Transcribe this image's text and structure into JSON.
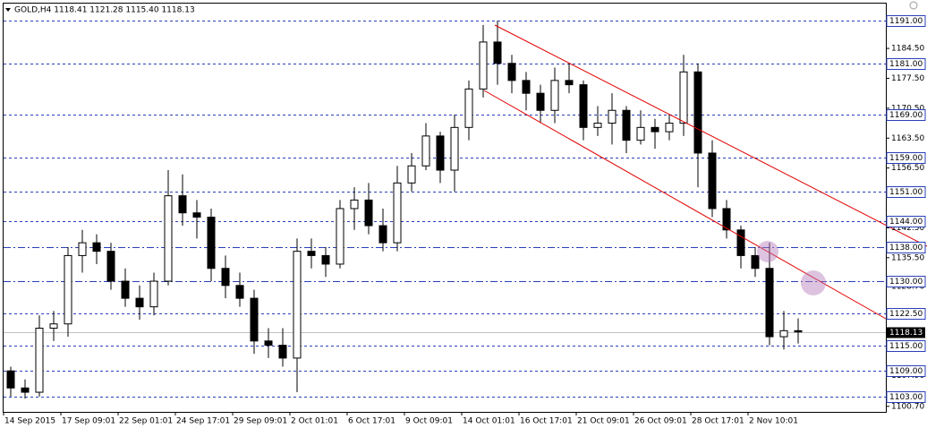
{
  "chart_data": {
    "type": "candlestick",
    "title": "GOLD,H4  1118.41 1121.28 1115.40 1118.13",
    "categories": [
      "14 Sep 2015",
      null,
      null,
      null,
      "17 Sep 09:01",
      null,
      null,
      null,
      "22 Sep 01:01",
      null,
      null,
      null,
      "24 Sep 17:01",
      null,
      null,
      null,
      "29 Sep 09:01",
      null,
      null,
      null,
      "2 Oct 01:01",
      null,
      null,
      null,
      "6 Oct 17:01",
      null,
      null,
      null,
      "9 Oct 09:01",
      null,
      null,
      null,
      "14 Oct 01:01",
      null,
      null,
      null,
      "16 Oct 17:01",
      null,
      null,
      null,
      "21 Oct 09:01",
      null,
      null,
      null,
      "26 Oct 09:01",
      null,
      null,
      null,
      "28 Oct 17:01",
      null,
      null,
      null,
      "2 Nov 10:01",
      null,
      null,
      null
    ],
    "open": [
      1109,
      1105,
      1104,
      1119,
      1120,
      1136,
      1139,
      1137,
      1130,
      1126,
      1124,
      1130,
      1150,
      1146,
      1145,
      1133,
      1129,
      1126,
      1116,
      1115,
      1112,
      1137,
      1136,
      1134,
      1147,
      1149,
      1143,
      1139,
      1153,
      1157,
      1164,
      1156,
      1166,
      1175,
      1186,
      1181,
      1177,
      1174,
      1170,
      1177,
      1176,
      1166,
      1167,
      1170,
      1163,
      1166,
      1165,
      1167,
      1179,
      1160,
      1147,
      1142,
      1136,
      1133,
      1117,
      1118.41
    ],
    "high": [
      1110,
      1107,
      1122,
      1123,
      1138,
      1142,
      1141,
      1139,
      1133,
      1129,
      1132,
      1156,
      1155,
      1149,
      1147,
      1136,
      1132,
      1128,
      1119,
      1119,
      1140,
      1140,
      1138,
      1149,
      1152,
      1153,
      1147,
      1157,
      1160,
      1167,
      1165,
      1169,
      1177,
      1190,
      1191,
      1183,
      1179,
      1176,
      1180,
      1181,
      1177,
      1171,
      1174,
      1171,
      1170,
      1168,
      1169,
      1183,
      1181,
      1163,
      1149,
      1143,
      1138,
      1139,
      1123,
      1121.28
    ],
    "low": [
      1103,
      1102.5,
      1103,
      1116,
      1117,
      1132,
      1134,
      1128,
      1124,
      1121,
      1122,
      1129,
      1143,
      1140,
      1130,
      1126,
      1124,
      1113,
      1112,
      1110,
      1104,
      1133,
      1131,
      1133,
      1142,
      1141,
      1137,
      1137,
      1151,
      1156,
      1153,
      1151,
      1163,
      1173,
      1176,
      1174,
      1170,
      1167,
      1167,
      1174,
      1163,
      1164,
      1162,
      1160,
      1162,
      1161,
      1163,
      1164,
      1152,
      1145,
      1140,
      1133,
      1131,
      1115,
      1114,
      1115.4
    ],
    "close": [
      1105,
      1104,
      1119,
      1120,
      1136,
      1139,
      1137,
      1130,
      1126,
      1124,
      1130,
      1150,
      1146,
      1145,
      1133,
      1129,
      1126,
      1116,
      1115,
      1112,
      1137,
      1136,
      1134,
      1147,
      1149,
      1143,
      1139,
      1153,
      1157,
      1164,
      1156,
      1166,
      1175,
      1186,
      1181,
      1177,
      1174,
      1170,
      1177,
      1176,
      1166,
      1167,
      1170,
      1163,
      1166,
      1165,
      1167,
      1179,
      1160,
      1147,
      1142,
      1136,
      1133,
      1117,
      1118.41,
      1118.13
    ],
    "color": "#000000",
    "ylim": [
      1099.4,
      1195.0
    ],
    "yticks": [
      {
        "value": 1184.5,
        "label": "1184.50"
      },
      {
        "value": 1177.5,
        "label": "1177.50"
      },
      {
        "value": 1170.5,
        "label": "1170.50"
      },
      {
        "value": 1163.5,
        "label": "1163.50"
      },
      {
        "value": 1156.5,
        "label": "1156.50"
      },
      {
        "value": 1142.5,
        "label": "1142.50"
      },
      {
        "value": 1135.5,
        "label": "1135.50"
      },
      {
        "value": 1128.7,
        "label": "1128.70"
      },
      {
        "value": 1107.9,
        "label": "1107.90"
      },
      {
        "value": 1100.7,
        "label": "1100.70"
      }
    ],
    "levels": [
      {
        "value": 1191,
        "label": "1191.00",
        "style": "dash"
      },
      {
        "value": 1181,
        "label": "1181.00",
        "style": "dash"
      },
      {
        "value": 1169,
        "label": "1169.00",
        "style": "dash"
      },
      {
        "value": 1159,
        "label": "1159.00",
        "style": "dash"
      },
      {
        "value": 1151,
        "label": "1151.00",
        "style": "dash"
      },
      {
        "value": 1144,
        "label": "1144.00",
        "style": "dash"
      },
      {
        "value": 1138,
        "label": "1138.00",
        "style": "dashdot"
      },
      {
        "value": 1130,
        "label": "1130.00",
        "style": "dashdot"
      },
      {
        "value": 1122.5,
        "label": "1122.50",
        "style": "dash"
      },
      {
        "value": 1115,
        "label": "1115.00",
        "style": "dash"
      },
      {
        "value": 1109,
        "label": "1109.00",
        "style": "dash"
      },
      {
        "value": 1103,
        "label": "1103.00",
        "style": "dash"
      }
    ],
    "level_color": "#2a3fb8",
    "last_price": {
      "value": 1118.13,
      "label": "1118.13"
    }
  }
}
